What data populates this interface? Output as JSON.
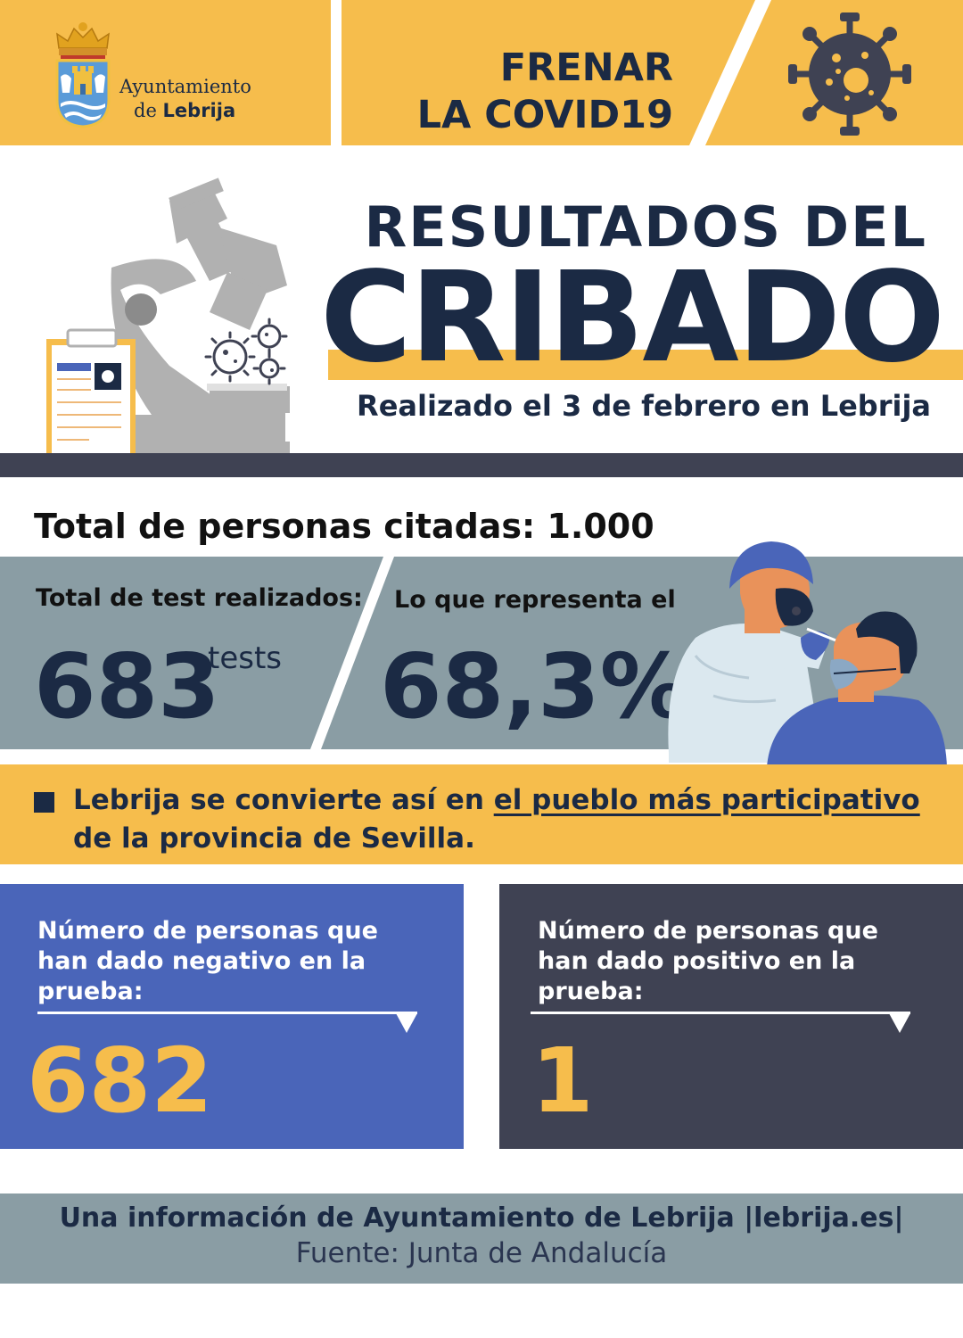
{
  "header": {
    "logo_line1": "Ayuntamiento",
    "logo_line2_pre": "de ",
    "logo_line2_bold": "Lebrija",
    "slogan_line1": "FRENAR",
    "slogan_line2": "LA COVID19"
  },
  "title": {
    "line1": "RESULTADOS DEL",
    "line2": "CRIBADO",
    "subtitle": "Realizado el 3 de febrero en Lebrija"
  },
  "stats": {
    "total_citadas": "Total de personas citadas: 1.000",
    "tests_label": "Total de test realizados:",
    "tests_value": "683",
    "tests_unit": "tests",
    "percent_label": "Lo que representa el",
    "percent_value": "68,3%"
  },
  "highlight": {
    "text_pre": "Lebrija se convierte así en ",
    "text_underlined": "el pueblo más participativo",
    "text_post": "de la provincia de Sevilla."
  },
  "results": {
    "negative_label": "Número de personas que han dado negativo en la prueba:",
    "negative_value": "682",
    "positive_label": "Número de personas que han dado positivo en la prueba:",
    "positive_value": "1"
  },
  "footer": {
    "line1": "Una información de Ayuntamiento de Lebrija |lebrija.es|",
    "line2": "Fuente: Junta de Andalucía"
  },
  "colors": {
    "yellow": "#f6bd4c",
    "navy": "#1b2a44",
    "gray_blue": "#8a9da4",
    "dark": "#3f4253",
    "blue": "#4a65b9"
  }
}
